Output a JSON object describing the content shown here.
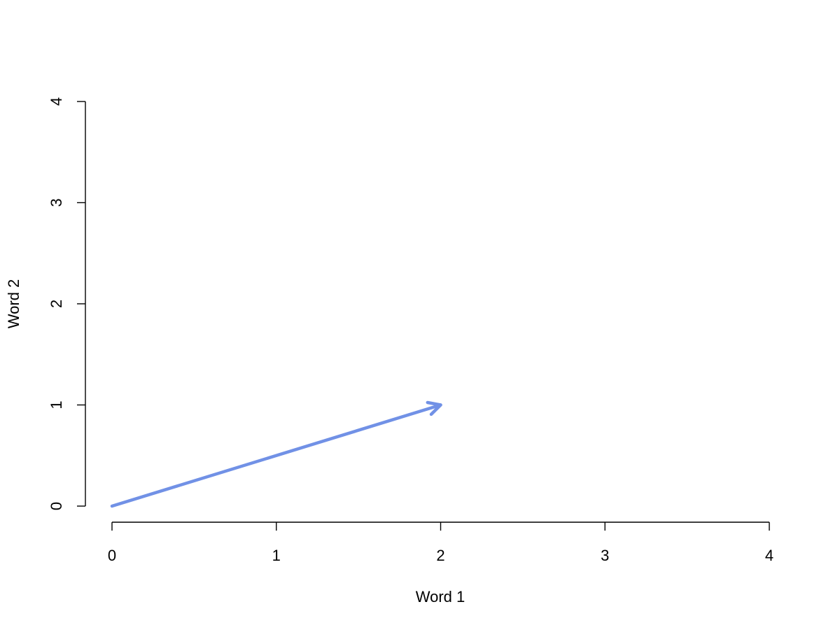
{
  "chart_data": {
    "type": "line",
    "title": "",
    "xlabel": "Word 1",
    "ylabel": "Word 2",
    "xlim": [
      0,
      4
    ],
    "ylim": [
      0,
      4
    ],
    "x_ticks": [
      0,
      1,
      2,
      3,
      4
    ],
    "y_ticks": [
      0,
      1,
      2,
      3,
      4
    ],
    "grid": false,
    "series": [
      {
        "arrow": true,
        "color": "#7191E6",
        "x": [
          0,
          2
        ],
        "y": [
          0,
          1
        ]
      }
    ]
  }
}
